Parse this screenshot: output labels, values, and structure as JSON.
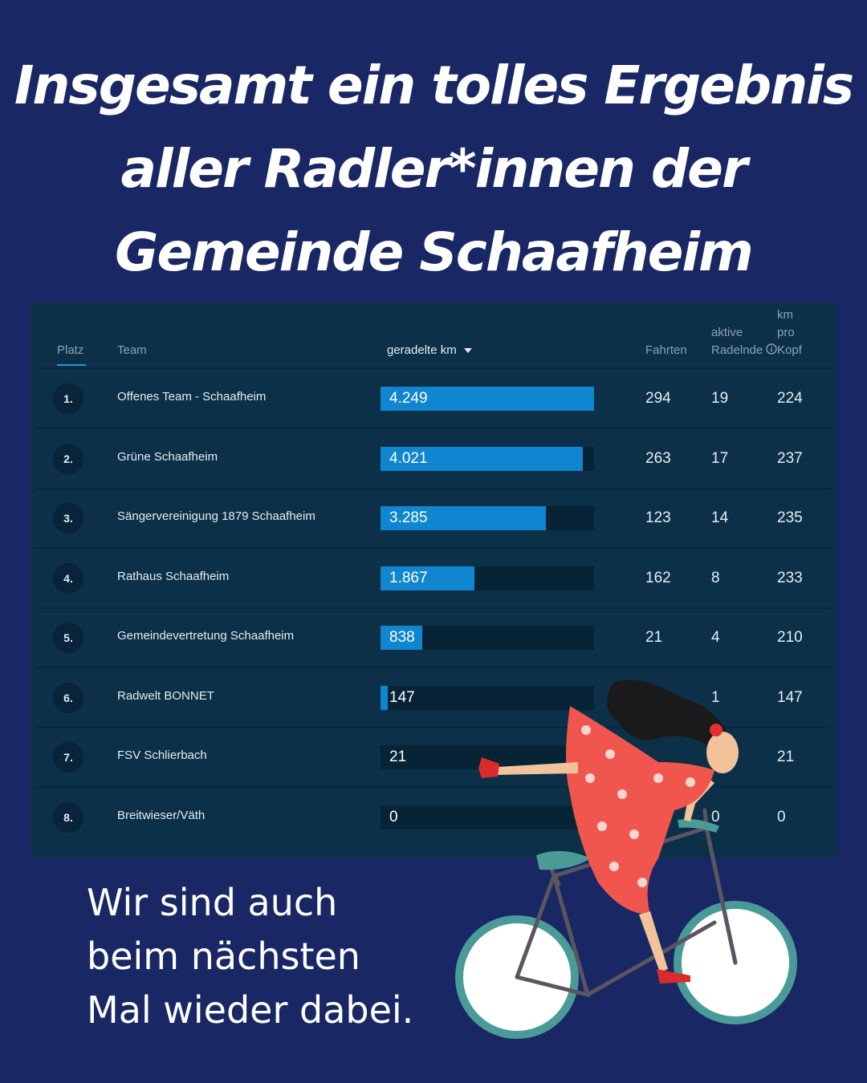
{
  "headline": {
    "line1": "Insgesamt ein tolles Ergebnis",
    "line2": "aller Radler*innen der",
    "line3": "Gemeinde Schaafheim"
  },
  "table": {
    "headers": {
      "platz": "Platz",
      "team": "Team",
      "km": "geradelte km",
      "fahrten": "Fahrten",
      "aktive_line1": "aktive",
      "aktive_line2": "Radelnde",
      "kopf_line1": "km",
      "kopf_line2": "pro",
      "kopf_line3": "Kopf"
    },
    "max_km": 4249,
    "rows": [
      {
        "rank": "1.",
        "team": "Offenes Team - Schaafheim",
        "km": "4.249",
        "km_value": 4249,
        "fahrten": "294",
        "aktive": "19",
        "pro_kopf": "224"
      },
      {
        "rank": "2.",
        "team": "Grüne Schaafheim",
        "km": "4.021",
        "km_value": 4021,
        "fahrten": "263",
        "aktive": "17",
        "pro_kopf": "237"
      },
      {
        "rank": "3.",
        "team": "Sängervereinigung 1879 Schaafheim",
        "km": "3.285",
        "km_value": 3285,
        "fahrten": "123",
        "aktive": "14",
        "pro_kopf": "235"
      },
      {
        "rank": "4.",
        "team": "Rathaus Schaafheim",
        "km": "1.867",
        "km_value": 1867,
        "fahrten": "162",
        "aktive": "8",
        "pro_kopf": "233"
      },
      {
        "rank": "5.",
        "team": "Gemeindevertretung Schaafheim",
        "km": "838",
        "km_value": 838,
        "fahrten": "21",
        "aktive": "4",
        "pro_kopf": "210"
      },
      {
        "rank": "6.",
        "team": "Radwelt BONNET",
        "km": "147",
        "km_value": 147,
        "fahrten": "",
        "aktive": "1",
        "pro_kopf": "147"
      },
      {
        "rank": "7.",
        "team": "FSV Schlierbach",
        "km": "21",
        "km_value": 21,
        "fahrten": "",
        "aktive": "",
        "pro_kopf": "21"
      },
      {
        "rank": "8.",
        "team": "Breitwieser/Väth",
        "km": "0",
        "km_value": 0,
        "fahrten": "",
        "aktive": "0",
        "pro_kopf": "0"
      }
    ]
  },
  "footer": {
    "line1": "Wir sind auch",
    "line2": "beim nächsten",
    "line3": "Mal wieder dabei."
  },
  "colors": {
    "background": "#192865",
    "panel": "#0b3048",
    "bar": "#0f86cf",
    "dress": "#f0564e",
    "wheel": "#4a9b98"
  },
  "icons": {
    "sort": "caret-down-icon",
    "info": "info-icon"
  }
}
